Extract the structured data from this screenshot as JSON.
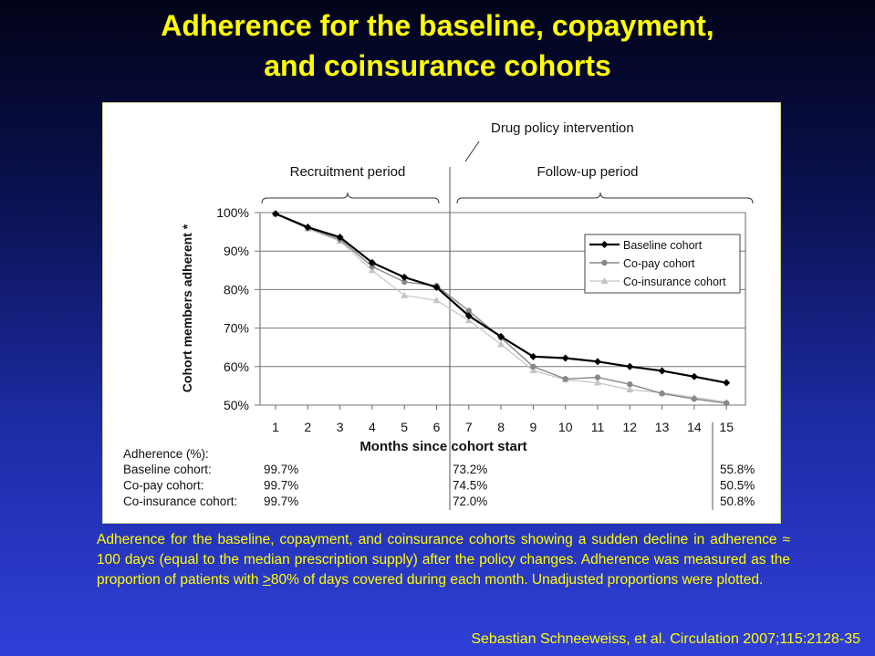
{
  "slide": {
    "title_line1": "Adherence for the baseline, copayment,",
    "title_line2": "and coinsurance cohorts",
    "caption": {
      "part1": "Adherence for the baseline, copayment, and coinsurance cohorts showing a sudden decline in adherence ≈ 100 days (equal to the median prescription supply) after the policy changes. Adherence was measured as the proportion of patients with ",
      "underlined": ">",
      "part2": "80% of days covered during each month. Unadjusted proportions were plotted."
    },
    "citation": "Sebastian Schneeweiss, et al. Circulation 2007;115:2128-35"
  },
  "chart_data": {
    "type": "line",
    "ylabel": "Cohort members adherent *",
    "xlabel": "Months since cohort start",
    "ylim": [
      50,
      100
    ],
    "yticks": [
      "50%",
      "60%",
      "70%",
      "80%",
      "90%",
      "100%"
    ],
    "x": [
      1,
      2,
      3,
      4,
      5,
      6,
      7,
      8,
      9,
      10,
      11,
      12,
      13,
      14,
      15
    ],
    "grid": "horizontal",
    "legend_position": "top-right",
    "series": [
      {
        "name": "Baseline cohort",
        "color": "#000000",
        "marker": "diamond",
        "values": [
          99.7,
          96.2,
          93.6,
          87.0,
          83.2,
          80.6,
          73.2,
          67.8,
          62.6,
          62.2,
          61.3,
          60.0,
          58.9,
          57.4,
          55.8
        ]
      },
      {
        "name": "Co-pay cohort",
        "color": "#888888",
        "marker": "circle",
        "values": [
          99.7,
          96.0,
          93.0,
          86.0,
          82.0,
          81.0,
          74.5,
          67.5,
          60.0,
          56.8,
          57.2,
          55.4,
          53.0,
          51.6,
          50.5
        ]
      },
      {
        "name": "Co-insurance cohort",
        "color": "#c4c4c4",
        "marker": "triangle",
        "values": [
          99.7,
          95.8,
          92.6,
          85.0,
          78.5,
          77.2,
          72.0,
          65.8,
          59.0,
          56.6,
          55.8,
          54.0,
          53.2,
          52.0,
          50.8
        ]
      }
    ],
    "annotations": {
      "intervention": "Drug policy intervention",
      "recruitment": "Recruitment period",
      "followup": "Follow-up period"
    },
    "table": {
      "header": "Adherence (%):",
      "rows": [
        {
          "label": "Baseline cohort:",
          "m1": "99.7%",
          "m7": "73.2%",
          "m15": "55.8%"
        },
        {
          "label": "Co-pay cohort:",
          "m1": "99.7%",
          "m7": "74.5%",
          "m15": "50.5%"
        },
        {
          "label": "Co-insurance cohort:",
          "m1": "99.7%",
          "m7": "72.0%",
          "m15": "50.8%"
        }
      ]
    }
  }
}
